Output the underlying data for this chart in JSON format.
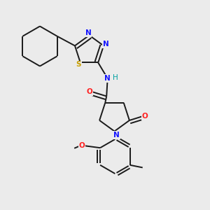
{
  "background_color": "#ebebeb",
  "bond_color": "#1a1a1a",
  "atom_colors": {
    "N": "#1414ff",
    "O": "#ff2020",
    "S": "#c8a000",
    "H": "#00a0a0",
    "C": "#1a1a1a"
  },
  "figsize": [
    3.0,
    3.0
  ],
  "dpi": 100,
  "lw": 1.4
}
